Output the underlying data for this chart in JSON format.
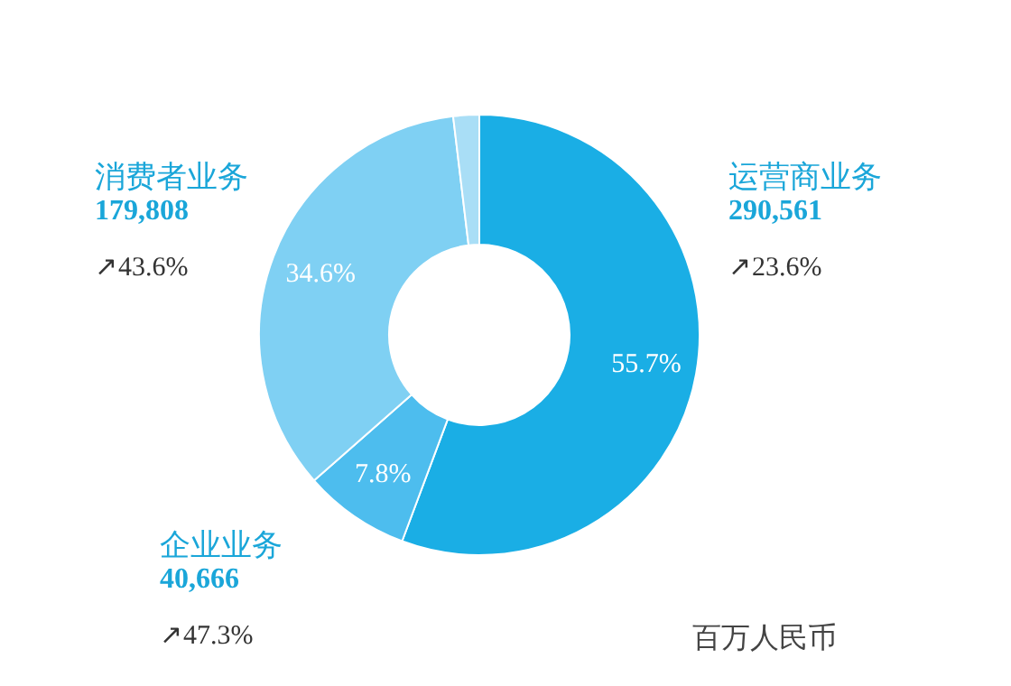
{
  "chart_data": {
    "type": "donut",
    "categories": [
      "运营商业务",
      "企业业务",
      "消费者业务",
      null
    ],
    "values": [
      55.7,
      7.8,
      34.6,
      1.9
    ],
    "colors": [
      "#1aaee5",
      "#4dbdee",
      "#7fd0f3",
      "#a9def6"
    ],
    "value_labels": [
      "55.7%",
      "7.8%",
      "34.6%",
      null
    ],
    "annotations": [
      "290,561",
      "↗23.6%",
      "40,666",
      "↗47.3%",
      "179,808",
      "↗43.6%",
      "百万人民币"
    ]
  }
}
